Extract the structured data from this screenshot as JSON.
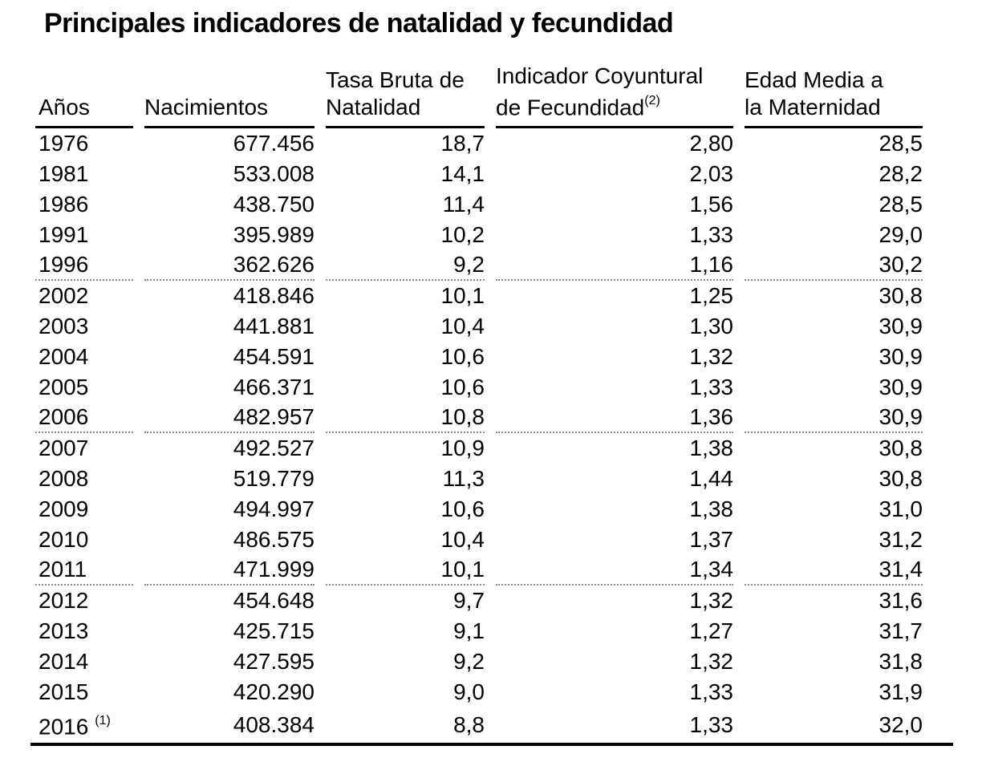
{
  "title": "Principales indicadores de natalidad y fecundidad",
  "table": {
    "columns": [
      {
        "label_line1": "",
        "label_line2": "Años"
      },
      {
        "label_line1": "",
        "label_line2": "Nacimientos"
      },
      {
        "label_line1": "Tasa Bruta de",
        "label_line2": "Natalidad"
      },
      {
        "label_line1": "Indicador Coyuntural",
        "label_line2": "de Fecundidad",
        "superscript": "(2)"
      },
      {
        "label_line1": "Edad Media a",
        "label_line2": "la Maternidad"
      }
    ],
    "rows": [
      {
        "year": "1976",
        "note": "",
        "nacimientos": "677.456",
        "tasa_bruta_natalidad": "18,7",
        "indicador_coyuntural_fecundidad": "2,80",
        "edad_media_maternidad": "28,5",
        "separator_below": false
      },
      {
        "year": "1981",
        "note": "",
        "nacimientos": "533.008",
        "tasa_bruta_natalidad": "14,1",
        "indicador_coyuntural_fecundidad": "2,03",
        "edad_media_maternidad": "28,2",
        "separator_below": false
      },
      {
        "year": "1986",
        "note": "",
        "nacimientos": "438.750",
        "tasa_bruta_natalidad": "11,4",
        "indicador_coyuntural_fecundidad": "1,56",
        "edad_media_maternidad": "28,5",
        "separator_below": false
      },
      {
        "year": "1991",
        "note": "",
        "nacimientos": "395.989",
        "tasa_bruta_natalidad": "10,2",
        "indicador_coyuntural_fecundidad": "1,33",
        "edad_media_maternidad": "29,0",
        "separator_below": false
      },
      {
        "year": "1996",
        "note": "",
        "nacimientos": "362.626",
        "tasa_bruta_natalidad": "9,2",
        "indicador_coyuntural_fecundidad": "1,16",
        "edad_media_maternidad": "30,2",
        "separator_below": true
      },
      {
        "year": "2002",
        "note": "",
        "nacimientos": "418.846",
        "tasa_bruta_natalidad": "10,1",
        "indicador_coyuntural_fecundidad": "1,25",
        "edad_media_maternidad": "30,8",
        "separator_below": false
      },
      {
        "year": "2003",
        "note": "",
        "nacimientos": "441.881",
        "tasa_bruta_natalidad": "10,4",
        "indicador_coyuntural_fecundidad": "1,30",
        "edad_media_maternidad": "30,9",
        "separator_below": false
      },
      {
        "year": "2004",
        "note": "",
        "nacimientos": "454.591",
        "tasa_bruta_natalidad": "10,6",
        "indicador_coyuntural_fecundidad": "1,32",
        "edad_media_maternidad": "30,9",
        "separator_below": false
      },
      {
        "year": "2005",
        "note": "",
        "nacimientos": "466.371",
        "tasa_bruta_natalidad": "10,6",
        "indicador_coyuntural_fecundidad": "1,33",
        "edad_media_maternidad": "30,9",
        "separator_below": false
      },
      {
        "year": "2006",
        "note": "",
        "nacimientos": "482.957",
        "tasa_bruta_natalidad": "10,8",
        "indicador_coyuntural_fecundidad": "1,36",
        "edad_media_maternidad": "30,9",
        "separator_below": true
      },
      {
        "year": "2007",
        "note": "",
        "nacimientos": "492.527",
        "tasa_bruta_natalidad": "10,9",
        "indicador_coyuntural_fecundidad": "1,38",
        "edad_media_maternidad": "30,8",
        "separator_below": false
      },
      {
        "year": "2008",
        "note": "",
        "nacimientos": "519.779",
        "tasa_bruta_natalidad": "11,3",
        "indicador_coyuntural_fecundidad": "1,44",
        "edad_media_maternidad": "30,8",
        "separator_below": false
      },
      {
        "year": "2009",
        "note": "",
        "nacimientos": "494.997",
        "tasa_bruta_natalidad": "10,6",
        "indicador_coyuntural_fecundidad": "1,38",
        "edad_media_maternidad": "31,0",
        "separator_below": false
      },
      {
        "year": "2010",
        "note": "",
        "nacimientos": "486.575",
        "tasa_bruta_natalidad": "10,4",
        "indicador_coyuntural_fecundidad": "1,37",
        "edad_media_maternidad": "31,2",
        "separator_below": false
      },
      {
        "year": "2011",
        "note": "",
        "nacimientos": "471.999",
        "tasa_bruta_natalidad": "10,1",
        "indicador_coyuntural_fecundidad": "1,34",
        "edad_media_maternidad": "31,4",
        "separator_below": true
      },
      {
        "year": "2012",
        "note": "",
        "nacimientos": "454.648",
        "tasa_bruta_natalidad": "9,7",
        "indicador_coyuntural_fecundidad": "1,32",
        "edad_media_maternidad": "31,6",
        "separator_below": false
      },
      {
        "year": "2013",
        "note": "",
        "nacimientos": "425.715",
        "tasa_bruta_natalidad": "9,1",
        "indicador_coyuntural_fecundidad": "1,27",
        "edad_media_maternidad": "31,7",
        "separator_below": false
      },
      {
        "year": "2014",
        "note": "",
        "nacimientos": "427.595",
        "tasa_bruta_natalidad": "9,2",
        "indicador_coyuntural_fecundidad": "1,32",
        "edad_media_maternidad": "31,8",
        "separator_below": false
      },
      {
        "year": "2015",
        "note": "",
        "nacimientos": "420.290",
        "tasa_bruta_natalidad": "9,0",
        "indicador_coyuntural_fecundidad": "1,33",
        "edad_media_maternidad": "31,9",
        "separator_below": false
      },
      {
        "year": "2016",
        "note": "(1)",
        "nacimientos": "408.384",
        "tasa_bruta_natalidad": "8,8",
        "indicador_coyuntural_fecundidad": "1,33",
        "edad_media_maternidad": "32,0",
        "separator_below": false
      }
    ]
  },
  "colors": {
    "text": "#000000",
    "background": "#ffffff",
    "rule": "#000000",
    "group_separator": "#8a8a8a"
  }
}
